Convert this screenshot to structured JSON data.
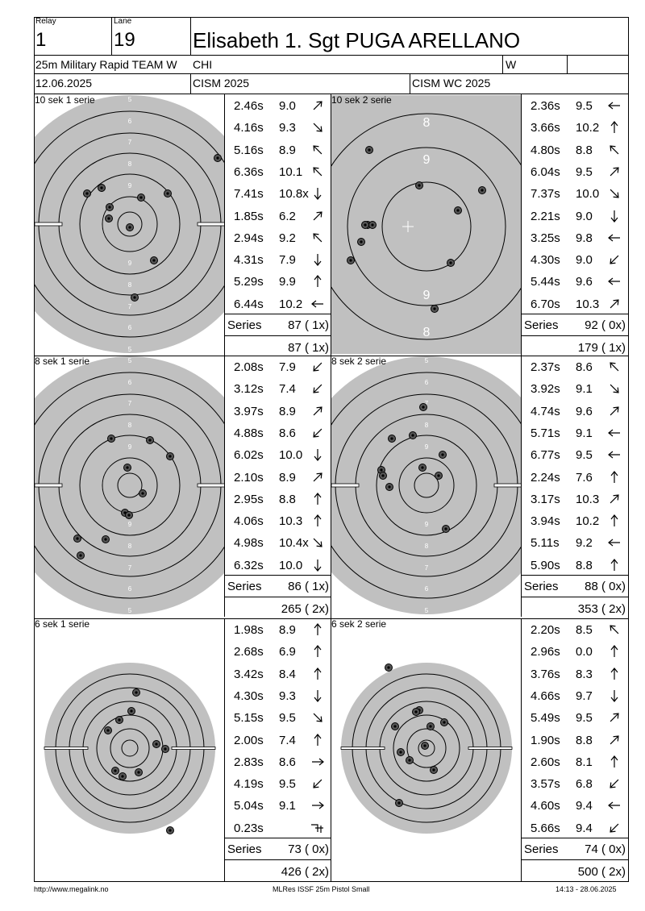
{
  "header": {
    "relay_label": "Relay",
    "relay_value": "1",
    "lane_label": "Lane",
    "lane_value": "19",
    "athlete": "Elisabeth 1. Sgt PUGA ARELLANO",
    "event": "25m Military Rapid TEAM W",
    "country": "CHI",
    "gender": "W",
    "date": "12.06.2025",
    "competition": "CISM 2025",
    "competition_full": "CISM WC 2025"
  },
  "series_label": "Series",
  "panels": [
    {
      "title": "10 sek 1 serie",
      "target": "full",
      "shots": [
        {
          "time": "2.46s",
          "value": "9.0",
          "dir": "ne"
        },
        {
          "time": "4.16s",
          "value": "9.3",
          "dir": "se"
        },
        {
          "time": "5.16s",
          "value": "8.9",
          "dir": "nw"
        },
        {
          "time": "6.36s",
          "value": "10.1",
          "dir": "nw"
        },
        {
          "time": "7.41s",
          "value": "10.8x",
          "dir": "s"
        },
        {
          "time": "1.85s",
          "value": "6.2",
          "dir": "ne"
        },
        {
          "time": "2.94s",
          "value": "9.2",
          "dir": "nw"
        },
        {
          "time": "4.31s",
          "value": "7.9",
          "dir": "s"
        },
        {
          "time": "5.29s",
          "value": "9.9",
          "dir": "n"
        },
        {
          "time": "6.44s",
          "value": "10.2",
          "dir": "w"
        }
      ],
      "series": "87 ( 1x)",
      "total": "87 ( 1x)"
    },
    {
      "title": "10 sek 2 serie",
      "target": "zoom",
      "shots": [
        {
          "time": "2.36s",
          "value": "9.5",
          "dir": "w"
        },
        {
          "time": "3.66s",
          "value": "10.2",
          "dir": "n"
        },
        {
          "time": "4.80s",
          "value": "8.8",
          "dir": "nw"
        },
        {
          "time": "6.04s",
          "value": "9.5",
          "dir": "ne"
        },
        {
          "time": "7.37s",
          "value": "10.0",
          "dir": "se"
        },
        {
          "time": "2.21s",
          "value": "9.0",
          "dir": "s"
        },
        {
          "time": "3.25s",
          "value": "9.8",
          "dir": "w"
        },
        {
          "time": "4.30s",
          "value": "9.0",
          "dir": "sw"
        },
        {
          "time": "5.44s",
          "value": "9.6",
          "dir": "w"
        },
        {
          "time": "6.70s",
          "value": "10.3",
          "dir": "ne"
        }
      ],
      "series": "92 ( 0x)",
      "total": "179 ( 1x)"
    },
    {
      "title": "8 sek 1 serie",
      "target": "full",
      "shots": [
        {
          "time": "2.08s",
          "value": "7.9",
          "dir": "sw"
        },
        {
          "time": "3.12s",
          "value": "7.4",
          "dir": "sw"
        },
        {
          "time": "3.97s",
          "value": "8.9",
          "dir": "ne"
        },
        {
          "time": "4.88s",
          "value": "8.6",
          "dir": "sw"
        },
        {
          "time": "6.02s",
          "value": "10.0",
          "dir": "s"
        },
        {
          "time": "2.10s",
          "value": "8.9",
          "dir": "ne"
        },
        {
          "time": "2.95s",
          "value": "8.8",
          "dir": "n"
        },
        {
          "time": "4.06s",
          "value": "10.3",
          "dir": "n"
        },
        {
          "time": "4.98s",
          "value": "10.4x",
          "dir": "se"
        },
        {
          "time": "6.32s",
          "value": "10.0",
          "dir": "s"
        }
      ],
      "series": "86 ( 1x)",
      "total": "265 ( 2x)"
    },
    {
      "title": "8 sek 2 serie",
      "target": "full",
      "shots": [
        {
          "time": "2.37s",
          "value": "8.6",
          "dir": "nw"
        },
        {
          "time": "3.92s",
          "value": "9.1",
          "dir": "se"
        },
        {
          "time": "4.74s",
          "value": "9.6",
          "dir": "ne"
        },
        {
          "time": "5.71s",
          "value": "9.1",
          "dir": "w"
        },
        {
          "time": "6.77s",
          "value": "9.5",
          "dir": "w"
        },
        {
          "time": "2.24s",
          "value": "7.6",
          "dir": "n"
        },
        {
          "time": "3.17s",
          "value": "10.3",
          "dir": "ne"
        },
        {
          "time": "3.94s",
          "value": "10.2",
          "dir": "n"
        },
        {
          "time": "5.11s",
          "value": "9.2",
          "dir": "w"
        },
        {
          "time": "5.90s",
          "value": "8.8",
          "dir": "n"
        }
      ],
      "series": "88 ( 0x)",
      "total": "353 ( 2x)"
    },
    {
      "title": "6 sek 1 serie",
      "target": "small",
      "shots": [
        {
          "time": "1.98s",
          "value": "8.9",
          "dir": "n"
        },
        {
          "time": "2.68s",
          "value": "6.9",
          "dir": "n"
        },
        {
          "time": "3.42s",
          "value": "8.4",
          "dir": "n"
        },
        {
          "time": "4.30s",
          "value": "9.3",
          "dir": "s"
        },
        {
          "time": "5.15s",
          "value": "9.5",
          "dir": "se"
        },
        {
          "time": "2.00s",
          "value": "7.4",
          "dir": "n"
        },
        {
          "time": "2.83s",
          "value": "8.6",
          "dir": "e"
        },
        {
          "time": "4.19s",
          "value": "9.5",
          "dir": "sw"
        },
        {
          "time": "5.04s",
          "value": "9.1",
          "dir": "e"
        },
        {
          "time": "0.23s",
          "value": "",
          "dir": "none"
        }
      ],
      "series": "73 ( 0x)",
      "total": "426 ( 2x)"
    },
    {
      "title": "6 sek 2 serie",
      "target": "small",
      "shots": [
        {
          "time": "2.20s",
          "value": "8.5",
          "dir": "nw"
        },
        {
          "time": "2.96s",
          "value": "0.0",
          "dir": "n"
        },
        {
          "time": "3.76s",
          "value": "8.3",
          "dir": "n"
        },
        {
          "time": "4.66s",
          "value": "9.7",
          "dir": "s"
        },
        {
          "time": "5.49s",
          "value": "9.5",
          "dir": "ne"
        },
        {
          "time": "1.90s",
          "value": "8.8",
          "dir": "ne"
        },
        {
          "time": "2.60s",
          "value": "8.1",
          "dir": "n"
        },
        {
          "time": "3.57s",
          "value": "6.8",
          "dir": "sw"
        },
        {
          "time": "4.60s",
          "value": "9.4",
          "dir": "w"
        },
        {
          "time": "5.66s",
          "value": "9.4",
          "dir": "sw"
        }
      ],
      "series": "74 ( 0x)",
      "total": "500 ( 2x)"
    }
  ],
  "footer": {
    "url": "http://www.megalink.no",
    "software": "MLRes ISSF 25m Pistol Small",
    "timestamp": "14:13 - 28.06.2025"
  }
}
